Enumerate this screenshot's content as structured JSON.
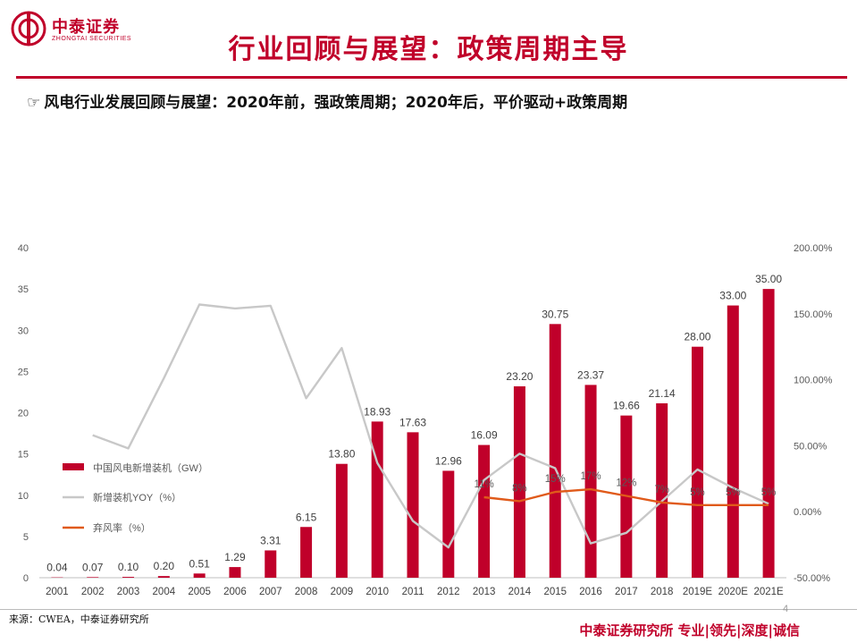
{
  "brand": {
    "logo_cn": "中泰证券",
    "logo_en": "ZHONGTAI SECURITIES",
    "brand_color": "#c0002a"
  },
  "page": {
    "title": "行业回顾与展望：政策周期主导",
    "subtitle": "风电行业发展回顾与展望：2020年前，强政策周期；2020年后，平价驱动+政策周期",
    "subtitle_icon": "pointing-hand-icon",
    "source": "来源：CWEA，中泰证券研究所",
    "footer": "中泰证券研究所 专业|领先|深度|诚信",
    "page_number": "4"
  },
  "chart_data": {
    "type": "bar",
    "categories": [
      "2001",
      "2002",
      "2003",
      "2004",
      "2005",
      "2006",
      "2007",
      "2008",
      "2009",
      "2010",
      "2011",
      "2012",
      "2013",
      "2014",
      "2015",
      "2016",
      "2017",
      "2018",
      "2019E",
      "2020E",
      "2021E"
    ],
    "y_left": {
      "ylim": [
        0,
        40
      ],
      "ticks": [
        "0",
        "5",
        "10",
        "15",
        "20",
        "25",
        "30",
        "35",
        "40"
      ]
    },
    "y_right": {
      "ylim": [
        -50,
        200
      ],
      "ticks": [
        "-50.00%",
        "0.00%",
        "50.00%",
        "100.00%",
        "150.00%",
        "200.00%"
      ]
    },
    "series": [
      {
        "name": "中国风电新增装机（GW）",
        "kind": "bar",
        "axis": "left",
        "color": "#c0002a",
        "values": [
          0.04,
          0.07,
          0.1,
          0.2,
          0.51,
          1.29,
          3.31,
          6.15,
          13.8,
          18.93,
          17.63,
          12.96,
          16.09,
          23.2,
          30.75,
          23.37,
          19.66,
          21.14,
          28.0,
          33.0,
          35.0
        ],
        "labels": [
          "0.04",
          "0.07",
          "0.10",
          "0.20",
          "0.51",
          "1.29",
          "3.31",
          "6.15",
          "13.80",
          "18.93",
          "17.63",
          "12.96",
          "16.09",
          "23.20",
          "30.75",
          "23.37",
          "19.66",
          "21.14",
          "28.00",
          "33.00",
          "35.00"
        ]
      },
      {
        "name": "新增装机YOY（%）",
        "kind": "line",
        "axis": "right",
        "color": "#c8c8c8",
        "values": [
          null,
          58,
          48,
          101,
          157,
          154,
          156,
          86,
          124,
          37,
          -7,
          -27,
          24,
          44,
          33,
          -24,
          -16,
          8,
          32,
          18,
          6
        ]
      },
      {
        "name": "弃风率（%）",
        "kind": "line",
        "axis": "right",
        "color": "#e05a1a",
        "values": [
          null,
          null,
          null,
          null,
          null,
          null,
          null,
          null,
          null,
          null,
          null,
          null,
          11,
          8,
          15,
          17,
          12,
          7,
          5,
          5,
          5
        ],
        "labels": [
          null,
          null,
          null,
          null,
          null,
          null,
          null,
          null,
          null,
          null,
          null,
          null,
          "11%",
          "8%",
          "15%",
          "17%",
          "12%",
          "7%",
          "5%",
          "5%",
          "5%"
        ]
      }
    ],
    "legend_position": "left-middle",
    "grid": false
  }
}
